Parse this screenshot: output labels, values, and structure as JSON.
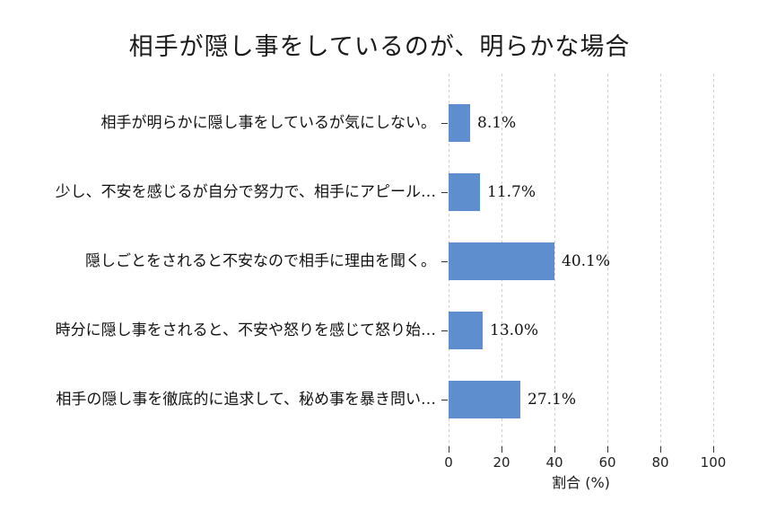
{
  "chart_data": {
    "type": "bar",
    "orientation": "horizontal",
    "title": "相手が隠し事をしているのが、明らかな場合",
    "categories": [
      "相手が明らかに隠し事をしているが気にしない。",
      "少し、不安を感じるが自分で努力で、相手にアピール…",
      "隠しごとをされると不安なので相手に理由を聞く。",
      "時分に隠し事をされると、不安や怒りを感じて怒り始…",
      "相手の隠し事を徹底的に追求して、秘め事を暴き問い…"
    ],
    "values": [
      8.1,
      11.7,
      40.1,
      13.0,
      27.1
    ],
    "value_labels": [
      "8.1%",
      "11.7%",
      "40.1%",
      "13.0%",
      "27.1%"
    ],
    "xlabel": "割合 (%)",
    "xlim": [
      0,
      100
    ],
    "xticks": [
      0,
      20,
      40,
      60,
      80,
      100
    ],
    "bar_color": "#5F8ECE",
    "gridline_color": "#cccccc",
    "grid": "vertical-dashed",
    "legend": "none",
    "background": "#ffffff"
  }
}
